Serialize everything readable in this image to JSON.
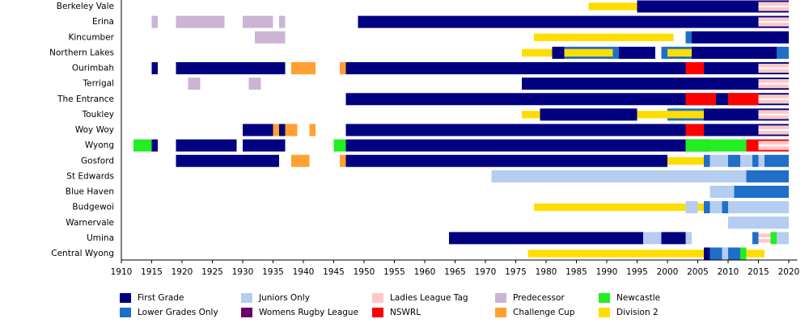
{
  "chart_data": {
    "type": "timeline",
    "categories": [
      "Berkeley Vale",
      "Erina",
      "Kincumber",
      "Northern Lakes",
      "Ourimbah",
      "Terrigal",
      "The Entrance",
      "Toukley",
      "Woy Woy",
      "Wyong",
      "Gosford",
      "St Edwards",
      "Blue Haven",
      "Budgewoi",
      "Warnervale",
      "Umina",
      "Central Wyong"
    ],
    "xlim": [
      1910,
      2021
    ],
    "xticks": [
      1910,
      1915,
      1920,
      1925,
      1930,
      1935,
      1940,
      1945,
      1950,
      1955,
      1960,
      1965,
      1970,
      1975,
      1980,
      1985,
      1990,
      1995,
      2000,
      2005,
      2010,
      2015,
      2020
    ],
    "series": [
      {
        "name": "First Grade",
        "color": "#000080",
        "values": [
          [
            [
              1995,
              2020
            ]
          ],
          [
            [
              1949,
              2020
            ]
          ],
          [
            [
              2004,
              2020
            ]
          ],
          [
            [
              1981,
              1983
            ],
            [
              1992,
              1998
            ],
            [
              2004,
              2018
            ]
          ],
          [
            [
              1915,
              1916
            ],
            [
              1919,
              1937
            ],
            [
              1947,
              2020
            ]
          ],
          [
            [
              1976,
              2020
            ]
          ],
          [
            [
              1947,
              2020
            ]
          ],
          [
            [
              1979,
              1995
            ],
            [
              2006,
              2020
            ]
          ],
          [
            [
              1930,
              1935
            ],
            [
              1936,
              1937
            ],
            [
              1947,
              2020
            ]
          ],
          [
            [
              1915,
              1916
            ],
            [
              1919,
              1929
            ],
            [
              1930,
              1937
            ],
            [
              1947,
              2007
            ]
          ],
          [
            [
              1919,
              1936
            ],
            [
              1947,
              2000
            ]
          ],
          [],
          [],
          [],
          [],
          [
            [
              1964,
              1996
            ],
            [
              1999,
              2003
            ]
          ],
          [
            [
              2006,
              2007
            ]
          ]
        ]
      },
      {
        "name": "Lower Grades Only",
        "color": "#1f6fc8",
        "values": [
          [
            [
              2002,
              2003
            ]
          ],
          [],
          [
            [
              2003,
              2004
            ]
          ],
          [
            [
              1983,
              1992
            ],
            [
              1999,
              2004
            ],
            [
              2018,
              2020
            ]
          ],
          [
            [
              1926,
              1927
            ]
          ],
          [],
          [],
          [
            [
              2000,
              2006
            ]
          ],
          [],
          [],
          [
            [
              2006,
              2007
            ],
            [
              2010,
              2012
            ],
            [
              2014,
              2015
            ],
            [
              2016,
              2020
            ]
          ],
          [
            [
              2013,
              2020
            ]
          ],
          [
            [
              2011,
              2020
            ]
          ],
          [
            [
              2006,
              2007
            ],
            [
              2009,
              2010
            ]
          ],
          [],
          [
            [
              2014,
              2015
            ]
          ],
          [
            [
              2007,
              2009
            ],
            [
              2010,
              2012
            ]
          ]
        ]
      },
      {
        "name": "Juniors Only",
        "color": "#b4cdf0",
        "values": [
          [],
          [],
          [],
          [],
          [],
          [],
          [],
          [],
          [],
          [],
          [
            [
              2007,
              2010
            ],
            [
              2012,
              2014
            ],
            [
              2015,
              2016
            ]
          ],
          [
            [
              1971,
              2013
            ]
          ],
          [
            [
              2007,
              2011
            ]
          ],
          [
            [
              2003,
              2005
            ],
            [
              2007,
              2009
            ],
            [
              2010,
              2020
            ]
          ],
          [
            [
              2010,
              2020
            ]
          ],
          [
            [
              1996,
              1999
            ],
            [
              2003,
              2004
            ],
            [
              2018,
              2020
            ]
          ],
          [
            [
              2009,
              2010
            ]
          ]
        ]
      },
      {
        "name": "Womens Rugby League",
        "color": "#6a006a",
        "values": [
          [],
          [],
          [],
          [],
          [],
          [],
          [],
          [],
          [],
          [],
          [],
          [],
          [],
          [],
          [],
          [],
          []
        ]
      },
      {
        "name": "Ladies League Tag",
        "color": "#ffc8c8",
        "values": [
          [
            [
              2015,
              2020
            ]
          ],
          [
            [
              2015,
              2020
            ]
          ],
          [],
          [],
          [
            [
              2015,
              2020
            ]
          ],
          [
            [
              2015,
              2020
            ]
          ],
          [
            [
              2015,
              2020
            ]
          ],
          [
            [
              2015,
              2020
            ]
          ],
          [
            [
              2015,
              2020
            ]
          ],
          [
            [
              2015,
              2020
            ]
          ],
          [],
          [],
          [],
          [],
          [],
          [
            [
              2015,
              2017
            ]
          ],
          []
        ]
      },
      {
        "name": "NSWRL",
        "color": "#ff0000",
        "values": [
          [],
          [],
          [],
          [],
          [
            [
              2003,
              2006
            ]
          ],
          [],
          [
            [
              2003,
              2008
            ],
            [
              2010,
              2015
            ]
          ],
          [],
          [
            [
              2003,
              2006
            ]
          ],
          [
            [
              2013,
              2020
            ]
          ],
          [],
          [],
          [],
          [],
          [],
          [],
          []
        ]
      },
      {
        "name": "Predecessor",
        "color": "#cbb4d4",
        "values": [
          [],
          [
            [
              1915,
              1916
            ],
            [
              1919,
              1927
            ],
            [
              1930,
              1935
            ],
            [
              1936,
              1937
            ]
          ],
          [
            [
              1932,
              1937
            ]
          ],
          [],
          [],
          [
            [
              1921,
              1923
            ],
            [
              1931,
              1933
            ]
          ],
          [],
          [],
          [],
          [],
          [],
          [],
          [],
          [],
          [],
          [],
          []
        ]
      },
      {
        "name": "Challenge Cup",
        "color": "#ffa030",
        "values": [
          [],
          [],
          [],
          [],
          [
            [
              1938,
              1942
            ],
            [
              1946,
              1947
            ]
          ],
          [],
          [],
          [],
          [
            [
              1935,
              1936
            ],
            [
              1937,
              1939
            ],
            [
              1941,
              1942
            ]
          ],
          [],
          [
            [
              1938,
              1941
            ],
            [
              1946,
              1947
            ]
          ],
          [],
          [],
          [],
          [],
          [],
          []
        ]
      },
      {
        "name": "Newcastle",
        "color": "#22ee22",
        "values": [
          [],
          [],
          [],
          [],
          [],
          [],
          [],
          [],
          [],
          [
            [
              1912,
              1915
            ],
            [
              1945,
              1947
            ],
            [
              2003,
              2013
            ]
          ],
          [],
          [],
          [],
          [],
          [],
          [
            [
              2017,
              2018
            ]
          ],
          [
            [
              2012,
              2013
            ]
          ]
        ]
      },
      {
        "name": "Division 2",
        "color": "#ffdd00",
        "values": [
          [
            [
              1987,
              1995
            ]
          ],
          [],
          [
            [
              1978,
              2001
            ]
          ],
          [
            [
              1976,
              1981
            ],
            [
              1983,
              1991
            ],
            [
              2000,
              2004
            ]
          ],
          [],
          [],
          [],
          [
            [
              1976,
              1979
            ],
            [
              1995,
              2006
            ]
          ],
          [],
          [],
          [
            [
              2000,
              2006
            ]
          ],
          [],
          [],
          [
            [
              1978,
              2003
            ],
            [
              2005,
              2006
            ]
          ],
          [],
          [],
          [
            [
              1977,
              2006
            ],
            [
              2013,
              2016
            ]
          ]
        ]
      }
    ]
  }
}
